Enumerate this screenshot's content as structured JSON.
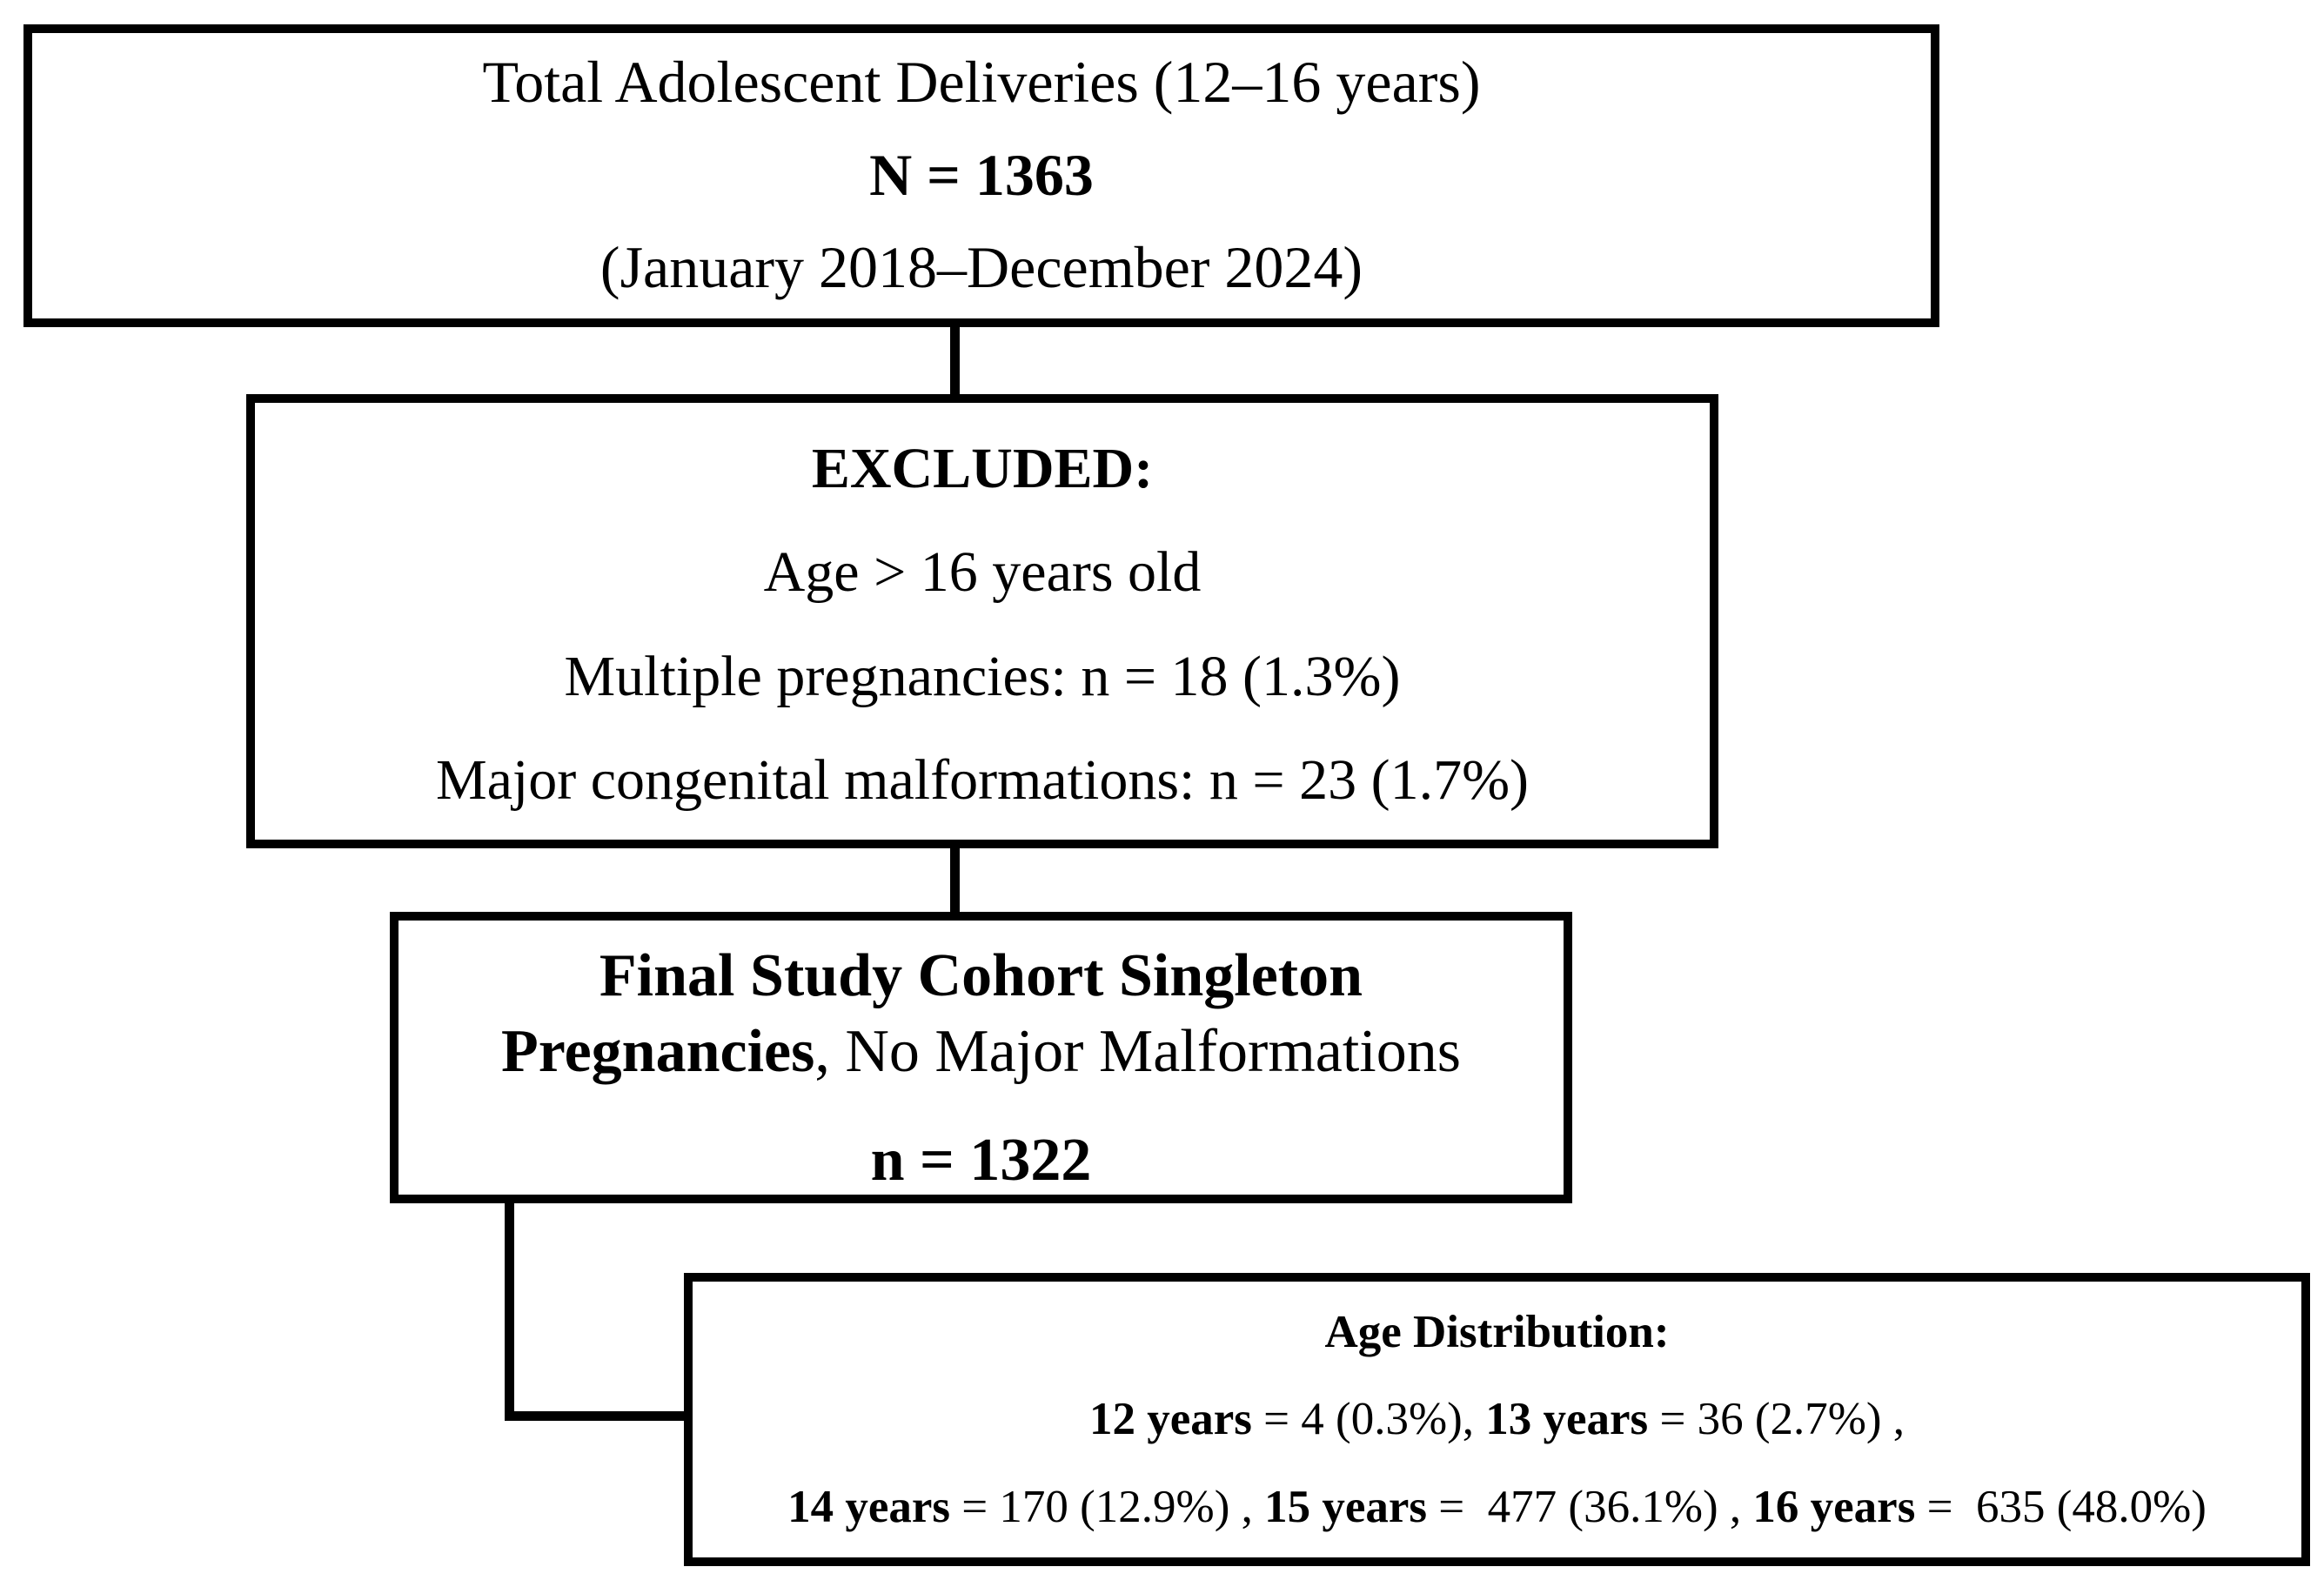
{
  "figure": {
    "colors": {
      "line": "#000000",
      "background": "#ffffff"
    },
    "box1": {
      "line1": "Total Adolescent Deliveries (12–16 years)",
      "line2": "N = 1363",
      "line3": "(January 2018–December 2024)"
    },
    "box2": {
      "title": "EXCLUDED:",
      "items": [
        "Age > 16 years old",
        "Multiple pregnancies: n = 18 (1.3%)",
        "Major congenital malformations: n = 23 (1.7%)"
      ]
    },
    "box3": {
      "line1": "Final Study Cohort Singleton",
      "line2_bold": "Pregnancies",
      "line2_rest": ", No Major Malformations",
      "line3": "n = 1322"
    },
    "box4": {
      "title": "Age Distribution:",
      "line2": [
        {
          "text": "12 years",
          "bold": true
        },
        {
          "text": " = 4 (0.3%), ",
          "bold": false
        },
        {
          "text": "13 years",
          "bold": true
        },
        {
          "text": " = 36 (2.7%) ,",
          "bold": false
        }
      ],
      "line3": [
        {
          "text": "14 years",
          "bold": true
        },
        {
          "text": " = 170 (12.9%) , ",
          "bold": false
        },
        {
          "text": "15 years",
          "bold": true
        },
        {
          "text": " =  477 (36.1%) , ",
          "bold": false
        },
        {
          "text": "16 years",
          "bold": true
        },
        {
          "text": " =  635 (48.0%)",
          "bold": false
        }
      ]
    }
  }
}
